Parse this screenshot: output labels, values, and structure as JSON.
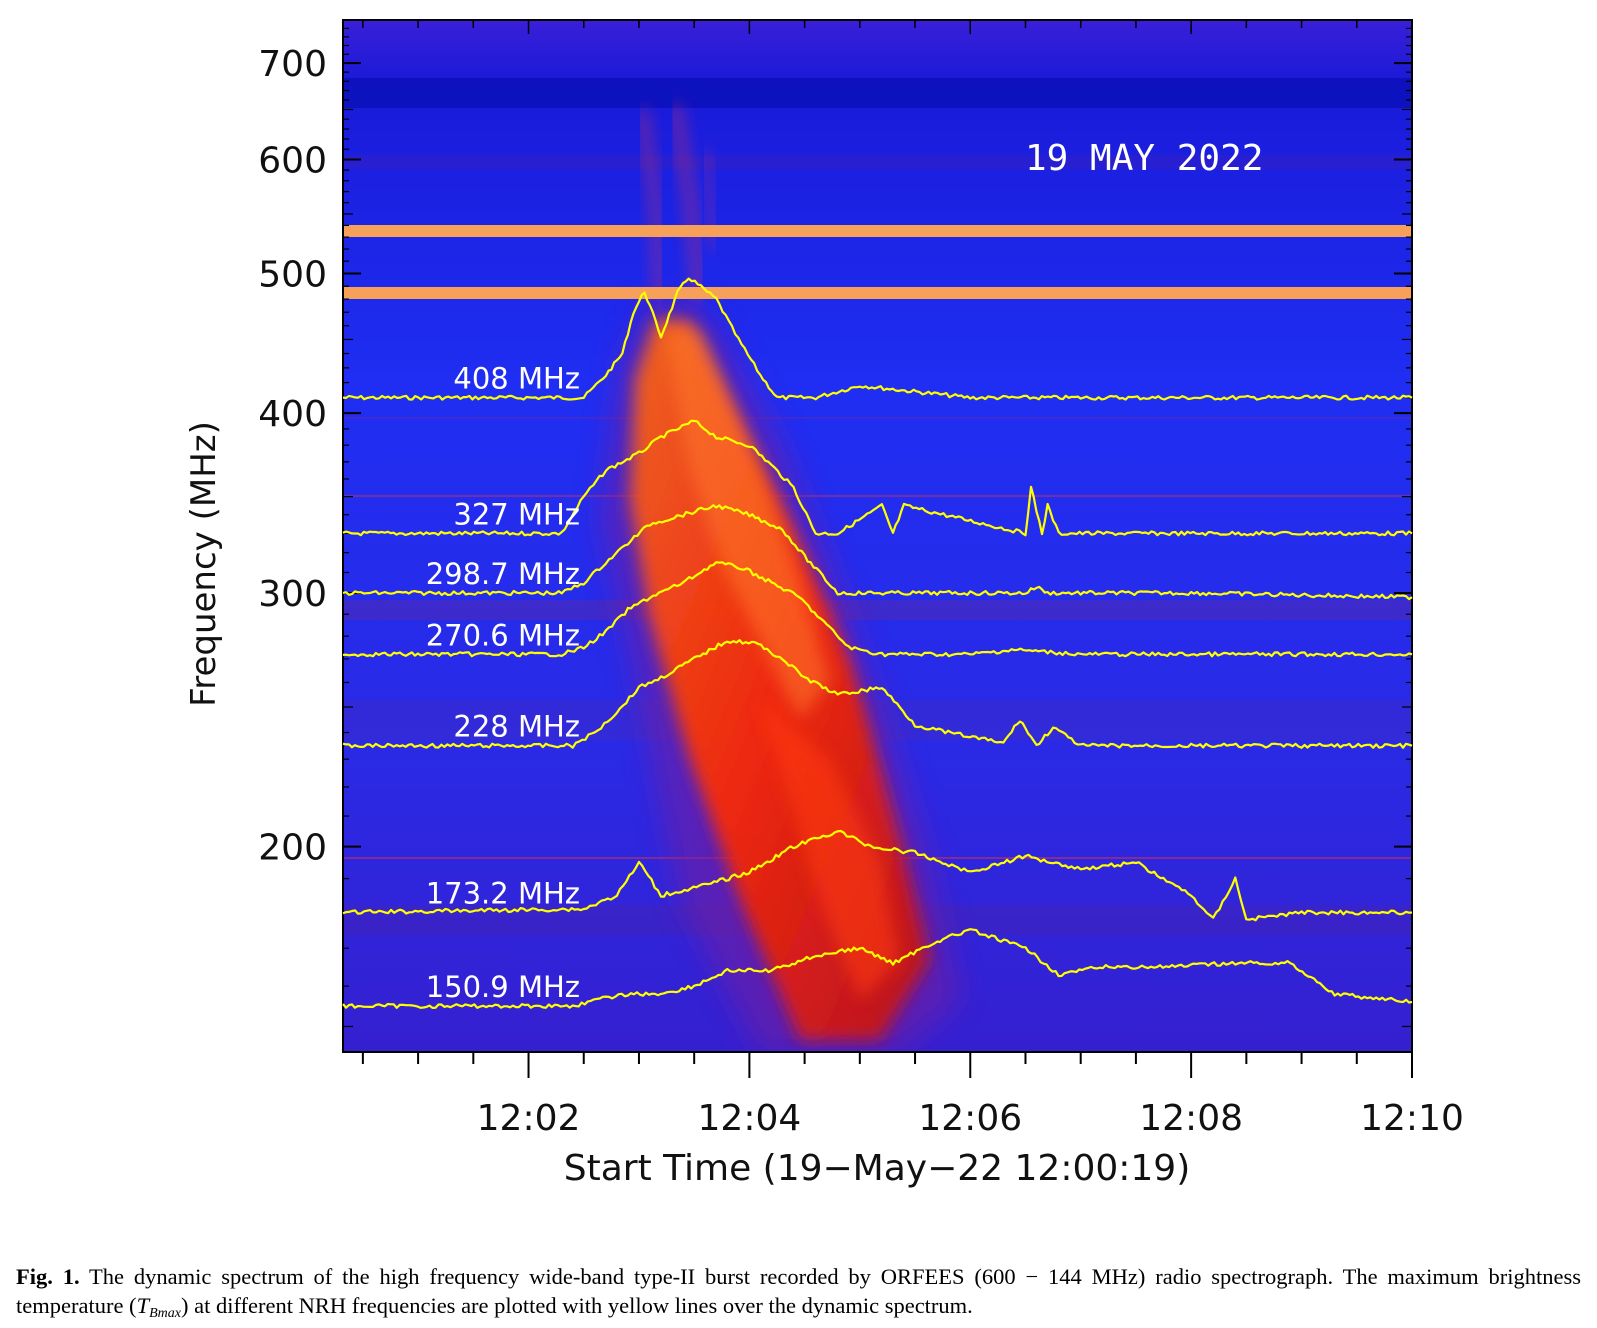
{
  "figure": {
    "date_label": "19 MAY 2022",
    "caption": {
      "label": "Fig. 1.",
      "text_before_symbol": " The dynamic spectrum of the high frequency wide-band type-II burst recorded by ORFEES (600 − 144 MHz) radio spectrograph. The maximum brightness temperature (",
      "symbol_main": "T",
      "symbol_sub": "Bmax",
      "text_after_symbol": ") at different NRH frequencies are plotted with yellow lines over the dynamic spectrum."
    }
  },
  "colors": {
    "background_spectrum": "#2a1ff0",
    "burst_red": "#ff2a00",
    "burst_orange": "#ff8a1e",
    "rfi_band": "#f6a05a",
    "trace": "#ffff00",
    "trace_label": "#ffffff"
  },
  "chart_data": {
    "type": "line",
    "title": "19 MAY 2022",
    "xlabel": "Start Time (19−May−22 12:00:19)",
    "ylabel": "Frequency (MHz)",
    "x_unit": "minutes after 12:00",
    "y_scale": "log",
    "xlim": [
      0.32,
      10.0
    ],
    "ylim": [
      144,
      750
    ],
    "x_tick_labels": [
      "12:02",
      "12:04",
      "12:06",
      "12:08",
      "12:10"
    ],
    "x_tick_values": [
      2,
      4,
      6,
      8,
      10
    ],
    "y_tick_labels": [
      "200",
      "300",
      "400",
      "500",
      "600",
      "700"
    ],
    "y_tick_values": [
      200,
      300,
      400,
      500,
      600,
      700
    ],
    "rfi_bands_mhz": [
      544,
      493
    ],
    "series": [
      {
        "name": "408 MHz",
        "baseline_mhz": 410,
        "x": [
          0.32,
          2.5,
          2.7,
          2.85,
          2.95,
          3.05,
          3.2,
          3.35,
          3.45,
          3.7,
          3.9,
          4.1,
          4.25,
          4.6,
          5.0,
          6.0,
          7.0,
          8.0,
          9.0,
          10.0
        ],
        "y": [
          410,
          410,
          425,
          440,
          470,
          486,
          452,
          485,
          497,
          480,
          450,
          425,
          410,
          410,
          418,
          410,
          410,
          410,
          410,
          410
        ]
      },
      {
        "name": "327 MHz",
        "baseline_mhz": 330,
        "x": [
          0.32,
          2.1,
          2.3,
          2.5,
          2.7,
          3.0,
          3.2,
          3.5,
          3.7,
          4.0,
          4.2,
          4.4,
          4.6,
          4.8,
          5.2,
          5.3,
          5.4,
          6.5,
          6.55,
          6.65,
          6.7,
          6.8,
          10.0
        ],
        "y": [
          330,
          330,
          330,
          350,
          365,
          375,
          385,
          395,
          385,
          380,
          368,
          355,
          330,
          330,
          345,
          330,
          345,
          330,
          355,
          330,
          345,
          330,
          330
        ]
      },
      {
        "name": "298.7 MHz",
        "baseline_mhz": 300,
        "x": [
          0.32,
          2.3,
          2.5,
          2.7,
          2.9,
          3.1,
          3.4,
          3.7,
          4.0,
          4.3,
          4.5,
          4.8,
          5.1,
          6.0,
          6.5,
          6.6,
          6.7,
          7.0,
          8.0,
          10.0
        ],
        "y": [
          300,
          300,
          305,
          315,
          325,
          335,
          340,
          345,
          340,
          332,
          318,
          300,
          300,
          300,
          300,
          303,
          300,
          300,
          300,
          298
        ]
      },
      {
        "name": "270.6 MHz",
        "baseline_mhz": 272,
        "x": [
          0.32,
          2.3,
          2.5,
          2.7,
          2.9,
          3.1,
          3.4,
          3.7,
          3.95,
          4.2,
          4.45,
          4.7,
          4.9,
          5.2,
          6.0,
          6.4,
          7.0,
          8.0,
          10.0
        ],
        "y": [
          272,
          272,
          275,
          282,
          292,
          298,
          305,
          315,
          312,
          305,
          298,
          285,
          275,
          272,
          272,
          274,
          272,
          272,
          272
        ]
      },
      {
        "name": "228 MHz",
        "baseline_mhz": 235,
        "x": [
          0.32,
          2.4,
          2.6,
          2.8,
          3.0,
          3.2,
          3.5,
          3.8,
          4.05,
          4.3,
          4.5,
          4.8,
          5.2,
          5.5,
          5.8,
          6.3,
          6.45,
          6.6,
          6.75,
          7.0,
          8.0,
          10.0
        ],
        "y": [
          235,
          235,
          240,
          248,
          258,
          262,
          270,
          278,
          277,
          270,
          262,
          255,
          258,
          243,
          240,
          236,
          245,
          235,
          242,
          235,
          235,
          235
        ]
      },
      {
        "name": "173.2 MHz",
        "baseline_mhz": 180,
        "x": [
          0.32,
          2.5,
          2.8,
          3.0,
          3.2,
          3.6,
          4.0,
          4.4,
          4.8,
          5.1,
          5.5,
          6.0,
          6.5,
          7.0,
          7.5,
          8.0,
          8.2,
          8.4,
          8.5,
          9.0,
          10.0
        ],
        "y": [
          180,
          181,
          185,
          195,
          185,
          188,
          192,
          200,
          205,
          200,
          198,
          192,
          197,
          193,
          195,
          185,
          178,
          190,
          178,
          180,
          180
        ]
      },
      {
        "name": "150.9 MHz",
        "baseline_mhz": 155,
        "x": [
          0.32,
          2.4,
          2.7,
          2.9,
          3.2,
          3.5,
          3.8,
          4.2,
          4.6,
          5.0,
          5.3,
          5.7,
          6.0,
          6.5,
          6.8,
          7.2,
          7.8,
          8.4,
          8.9,
          9.3,
          10.0
        ],
        "y": [
          155,
          155,
          157,
          158,
          158,
          160,
          164,
          164,
          168,
          170,
          166,
          172,
          175,
          170,
          163,
          165,
          165,
          166,
          166,
          158,
          156
        ]
      }
    ]
  }
}
